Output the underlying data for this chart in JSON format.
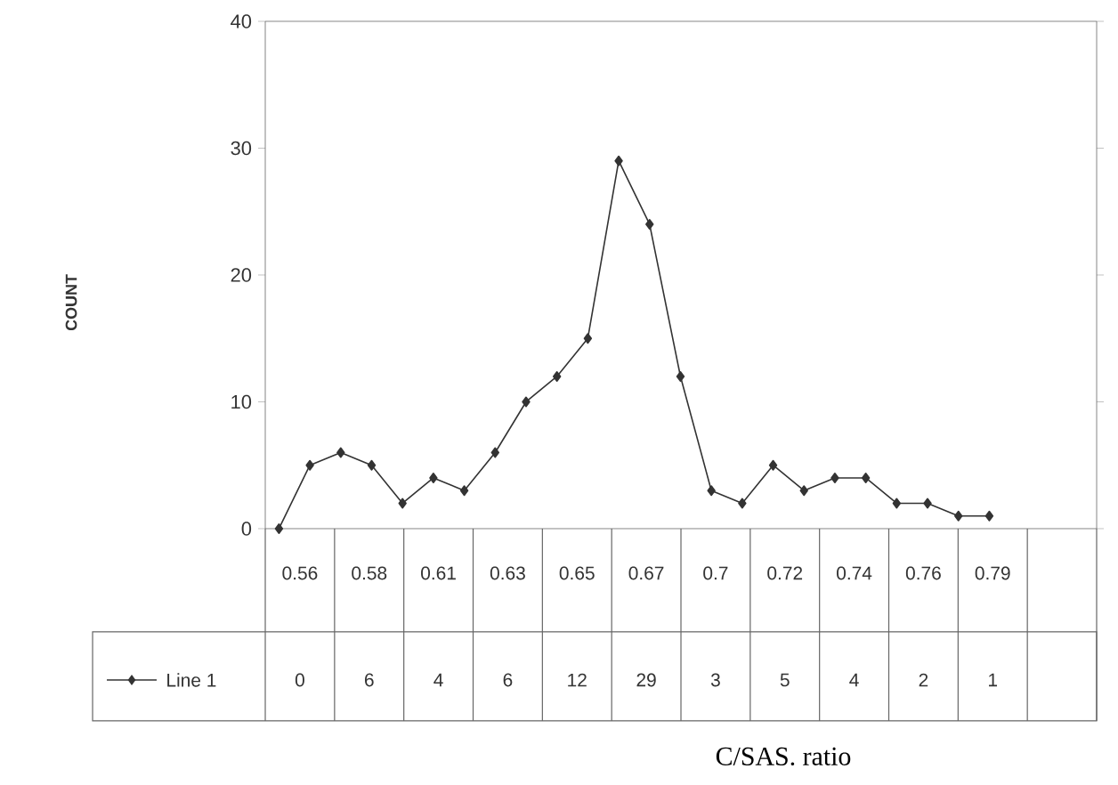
{
  "chart_data": [
    {
      "type": "line",
      "ylabel": "COUNT",
      "xlabel": "C/SAS. ratio",
      "categories": [
        null,
        null,
        null,
        null,
        null,
        null,
        null,
        null,
        null,
        null,
        null,
        null,
        null,
        null,
        null,
        null,
        null,
        null,
        null,
        null,
        null,
        null,
        null,
        null
      ],
      "series": [
        {
          "color": "#333333",
          "values": [
            0,
            5,
            6,
            5,
            2,
            4,
            3,
            6,
            10,
            12,
            15,
            29,
            24,
            12,
            3,
            2,
            5,
            3,
            4,
            4,
            2,
            2,
            1,
            1
          ]
        }
      ],
      "ylim": [
        0,
        40
      ],
      "yticks": [
        0,
        10,
        20,
        30,
        40
      ],
      "marker": "diamond",
      "tick_labels": "y"
    },
    {
      "type": "other",
      "categories": [
        "0.56",
        "0.58",
        "0.61",
        "0.63",
        "0.65",
        "0.67",
        "0.7",
        "0.72",
        "0.74",
        "0.76",
        "0.79",
        null
      ],
      "series": [
        {
          "name": "Line 1",
          "color": "#333333",
          "marker": "diamond",
          "values": [
            0,
            6,
            4,
            6,
            12,
            29,
            3,
            5,
            4,
            2,
            1,
            null
          ]
        }
      ],
      "data_labels": true
    }
  ]
}
